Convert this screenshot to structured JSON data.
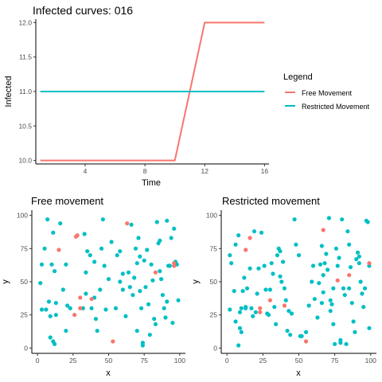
{
  "colors": {
    "free": "#F8766D",
    "restricted": "#00BFC4",
    "axis": "#000000",
    "tick_text": "#4d4d4d"
  },
  "chart_data": [
    {
      "type": "line",
      "title": "Infected curves: 016",
      "xlabel": "Time",
      "ylabel": "Infected",
      "xlim": [
        0.7,
        16.3
      ],
      "ylim": [
        9.95,
        12.05
      ],
      "xticks": [
        4,
        8,
        12,
        16
      ],
      "yticks": [
        10.0,
        10.5,
        11.0,
        11.5,
        12.0
      ],
      "ytick_labels": [
        "10.0",
        "10.5",
        "11.0",
        "11.5",
        "12.0"
      ],
      "grid": false,
      "legend": {
        "title": "Legend",
        "position": "right"
      },
      "series": [
        {
          "name": "Free Movement",
          "color": "#F8766D",
          "x": [
            1,
            2,
            3,
            4,
            5,
            6,
            7,
            8,
            9,
            10,
            11,
            12,
            13,
            14,
            15,
            16
          ],
          "y": [
            10,
            10,
            10,
            10,
            10,
            10,
            10,
            10,
            10,
            10,
            11,
            12,
            12,
            12,
            12,
            12
          ]
        },
        {
          "name": "Restricted Movement",
          "color": "#00BFC4",
          "x": [
            1,
            2,
            3,
            4,
            5,
            6,
            7,
            8,
            9,
            10,
            11,
            12,
            13,
            14,
            15,
            16
          ],
          "y": [
            11,
            11,
            11,
            11,
            11,
            11,
            11,
            11,
            11,
            11,
            11,
            11,
            11,
            11,
            11,
            11
          ]
        }
      ]
    },
    {
      "type": "scatter",
      "title": "Free movement",
      "xlabel": "x",
      "ylabel": "y",
      "xlim": [
        -4,
        104
      ],
      "ylim": [
        -4,
        104
      ],
      "xticks": [
        0,
        25,
        50,
        75,
        100
      ],
      "yticks": [
        0,
        25,
        50,
        75,
        100
      ],
      "grid": false,
      "series": [
        {
          "status": "infected",
          "color": "#F8766D",
          "points": [
            [
              15,
              74
            ],
            [
              27,
              84
            ],
            [
              28,
              85
            ],
            [
              30,
              38
            ],
            [
              30,
              30
            ],
            [
              26,
              25
            ],
            [
              38,
              37
            ],
            [
              53,
              5
            ],
            [
              63,
              94
            ],
            [
              83,
              57
            ],
            [
              96,
              62
            ],
            [
              96,
              64
            ]
          ]
        },
        {
          "status": "not infected",
          "color": "#00BFC4",
          "points": [
            [
              3,
              63
            ],
            [
              2,
              49
            ],
            [
              3,
              29
            ],
            [
              5,
              75
            ],
            [
              7,
              97
            ],
            [
              6,
              29
            ],
            [
              8,
              35
            ],
            [
              9,
              24
            ],
            [
              10,
              63
            ],
            [
              12,
              58
            ],
            [
              11,
              87
            ],
            [
              13,
              34
            ],
            [
              16,
              94
            ],
            [
              18,
              44
            ],
            [
              20,
              63
            ],
            [
              21,
              32
            ],
            [
              20,
              13
            ],
            [
              13,
              25
            ],
            [
              9,
              8
            ],
            [
              12,
              3
            ],
            [
              11,
              5
            ],
            [
              23,
              30
            ],
            [
              32,
              30
            ],
            [
              34,
              41
            ],
            [
              34,
              57
            ],
            [
              35,
              73
            ],
            [
              37,
              70
            ],
            [
              33,
              86
            ],
            [
              38,
              30
            ],
            [
              40,
              65
            ],
            [
              40,
              38
            ],
            [
              41,
              22
            ],
            [
              42,
              13
            ],
            [
              44,
              44
            ],
            [
              46,
              97
            ],
            [
              45,
              75
            ],
            [
              47,
              62
            ],
            [
              48,
              29
            ],
            [
              50,
              52
            ],
            [
              55,
              30
            ],
            [
              56,
              70
            ],
            [
              58,
              73
            ],
            [
              58,
              50
            ],
            [
              60,
              44
            ],
            [
              62,
              24
            ],
            [
              64,
              57
            ],
            [
              65,
              46
            ],
            [
              66,
              93
            ],
            [
              67,
              40
            ],
            [
              68,
              53
            ],
            [
              69,
              75
            ],
            [
              70,
              64
            ],
            [
              70,
              13
            ],
            [
              71,
              83
            ],
            [
              72,
              69
            ],
            [
              72,
              43
            ],
            [
              73,
              30
            ],
            [
              74,
              4
            ],
            [
              74,
              2
            ],
            [
              75,
              66
            ],
            [
              76,
              46
            ],
            [
              77,
              74
            ],
            [
              78,
              33
            ],
            [
              79,
              10
            ],
            [
              80,
              63
            ],
            [
              81,
              51
            ],
            [
              83,
              18
            ],
            [
              84,
              95
            ],
            [
              85,
              79
            ],
            [
              86,
              58
            ],
            [
              87,
              52
            ],
            [
              88,
              40
            ],
            [
              89,
              30
            ],
            [
              90,
              23
            ],
            [
              91,
              96
            ],
            [
              92,
              62
            ],
            [
              93,
              62
            ],
            [
              94,
              83
            ],
            [
              95,
              19
            ],
            [
              96,
              90
            ],
            [
              97,
              65
            ],
            [
              98,
              63
            ],
            [
              99,
              36
            ],
            [
              91,
              35
            ],
            [
              86,
              81
            ],
            [
              82,
              22
            ],
            [
              60,
              56
            ],
            [
              52,
              80
            ]
          ]
        }
      ]
    },
    {
      "type": "scatter",
      "title": "Restricted movement",
      "xlabel": "x",
      "ylabel": "y",
      "xlim": [
        -4,
        104
      ],
      "ylim": [
        -4,
        104
      ],
      "xticks": [
        0,
        25,
        50,
        75,
        100
      ],
      "yticks": [
        0,
        25,
        50,
        75,
        100
      ],
      "grid": false,
      "series": [
        {
          "status": "infected",
          "color": "#F8766D",
          "points": [
            [
              13,
              74
            ],
            [
              16,
              83
            ],
            [
              23,
              30
            ],
            [
              23,
              27
            ],
            [
              30,
              36
            ],
            [
              40,
              32
            ],
            [
              55,
              5
            ],
            [
              67,
              89
            ],
            [
              77,
              51
            ],
            [
              85,
              55
            ],
            [
              99,
              64
            ]
          ]
        },
        {
          "status": "not infected",
          "color": "#00BFC4",
          "points": [
            [
              2,
              29
            ],
            [
              2,
              70
            ],
            [
              3,
              64
            ],
            [
              5,
              43
            ],
            [
              6,
              78
            ],
            [
              6,
              20
            ],
            [
              8,
              85
            ],
            [
              8,
              2
            ],
            [
              9,
              15
            ],
            [
              9,
              27
            ],
            [
              10,
              12
            ],
            [
              10,
              30
            ],
            [
              11,
              43
            ],
            [
              12,
              53
            ],
            [
              13,
              30
            ],
            [
              13,
              31
            ],
            [
              14,
              45
            ],
            [
              16,
              60
            ],
            [
              17,
              30
            ],
            [
              18,
              24
            ],
            [
              19,
              88
            ],
            [
              20,
              27
            ],
            [
              21,
              41
            ],
            [
              22,
              60
            ],
            [
              24,
              87
            ],
            [
              26,
              62
            ],
            [
              27,
              44
            ],
            [
              28,
              26
            ],
            [
              29,
              25
            ],
            [
              30,
              44
            ],
            [
              31,
              64
            ],
            [
              32,
              56
            ],
            [
              33,
              31
            ],
            [
              34,
              18
            ],
            [
              35,
              70
            ],
            [
              36,
              75
            ],
            [
              37,
              73
            ],
            [
              37,
              54
            ],
            [
              38,
              50
            ],
            [
              39,
              65
            ],
            [
              40,
              45
            ],
            [
              41,
              36
            ],
            [
              42,
              13
            ],
            [
              43,
              28
            ],
            [
              44,
              10
            ],
            [
              45,
              26
            ],
            [
              47,
              97
            ],
            [
              50,
              70
            ],
            [
              51,
              9
            ],
            [
              52,
              9
            ],
            [
              55,
              12
            ],
            [
              57,
              32
            ],
            [
              59,
              50
            ],
            [
              61,
              37
            ],
            [
              63,
              23
            ],
            [
              64,
              49
            ],
            [
              65,
              63
            ],
            [
              66,
              77
            ],
            [
              67,
              55
            ],
            [
              67,
              42
            ],
            [
              68,
              64
            ],
            [
              69,
              71
            ],
            [
              70,
              59
            ],
            [
              71,
              98
            ],
            [
              72,
              36
            ],
            [
              72,
              28
            ],
            [
              73,
              33
            ],
            [
              74,
              45
            ],
            [
              74,
              18
            ],
            [
              75,
              3
            ],
            [
              76,
              75
            ],
            [
              77,
              62
            ],
            [
              78,
              68
            ],
            [
              79,
              6
            ],
            [
              79,
              4
            ],
            [
              80,
              97
            ],
            [
              81,
              45
            ],
            [
              82,
              40
            ],
            [
              83,
              3
            ],
            [
              84,
              88
            ],
            [
              85,
              78
            ],
            [
              86,
              61
            ],
            [
              87,
              34
            ],
            [
              88,
              20
            ],
            [
              89,
              12
            ],
            [
              90,
              67
            ],
            [
              91,
              72
            ],
            [
              92,
              64
            ],
            [
              93,
              50
            ],
            [
              94,
              41
            ],
            [
              95,
              31
            ],
            [
              96,
              45
            ],
            [
              97,
              96
            ],
            [
              98,
              95
            ],
            [
              99,
              15
            ],
            [
              99,
              62
            ],
            [
              92,
              69
            ],
            [
              60,
              62
            ],
            [
              66,
              34
            ],
            [
              85,
              45
            ],
            [
              48,
              78
            ]
          ]
        }
      ]
    }
  ]
}
